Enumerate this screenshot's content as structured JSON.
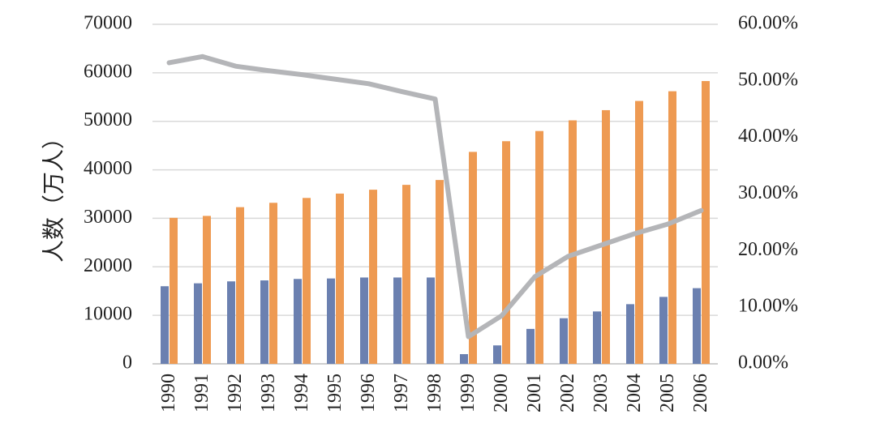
{
  "chart_data": {
    "type": "bar",
    "categories": [
      "1990",
      "1991",
      "1992",
      "1993",
      "1994",
      "1995",
      "1996",
      "1997",
      "1998",
      "1999",
      "2000",
      "2001",
      "2002",
      "2003",
      "2004",
      "2005",
      "2006"
    ],
    "ylabel": "人数（万人）",
    "ylim": [
      0,
      70000
    ],
    "y_ticks": [
      "0",
      "10000",
      "20000",
      "30000",
      "40000",
      "50000",
      "60000",
      "70000"
    ],
    "y2lim": [
      0,
      60
    ],
    "y2_ticks": [
      "0.00%",
      "10.00%",
      "20.00%",
      "30.00%",
      "40.00%",
      "50.00%",
      "60.00%"
    ],
    "grid": true,
    "legend": "none",
    "series": [
      {
        "kind": "bar",
        "color": "#6B80B0",
        "values": [
          16000,
          16600,
          17000,
          17200,
          17500,
          17600,
          17800,
          17800,
          17800,
          2000,
          3800,
          7200,
          9400,
          10800,
          12300,
          13800,
          15600
        ]
      },
      {
        "kind": "bar",
        "color": "#EE9A52",
        "values": [
          30100,
          30500,
          32300,
          33200,
          34200,
          35100,
          35900,
          36900,
          37900,
          43700,
          45900,
          48000,
          50200,
          52300,
          54200,
          56200,
          58300
        ]
      },
      {
        "kind": "line",
        "axis": "right",
        "color": "#B4B5B8",
        "values": [
          53.2,
          54.3,
          52.6,
          51.8,
          51.1,
          50.3,
          49.5,
          48.1,
          46.8,
          4.8,
          8.5,
          15.4,
          19.0,
          21.0,
          23.0,
          24.7,
          27.1
        ]
      }
    ]
  }
}
